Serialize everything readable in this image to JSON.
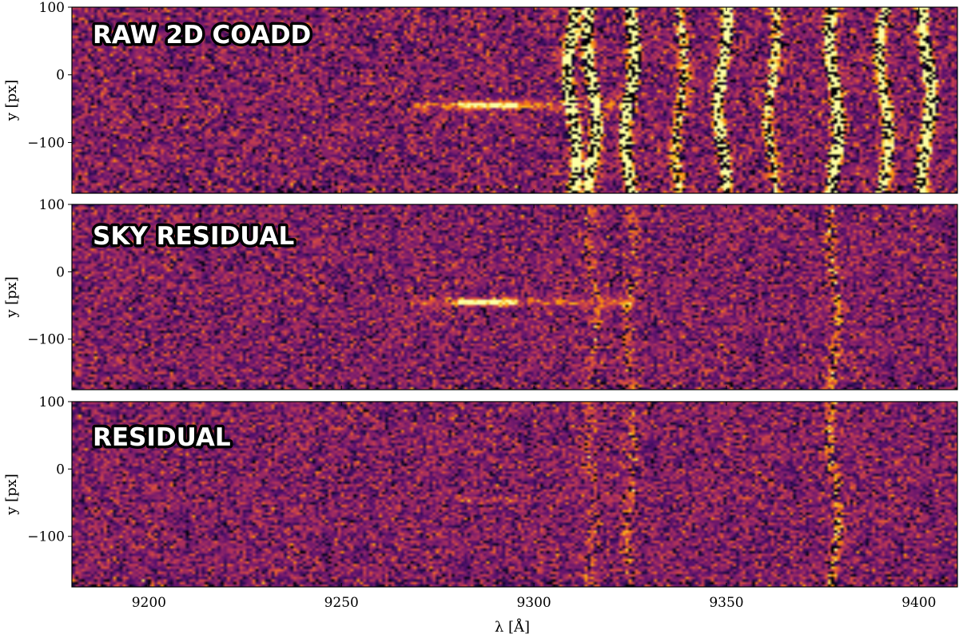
{
  "chart_data": {
    "type": "heatmap",
    "colormap": "inferno",
    "xlabel": "λ [Å]",
    "ylabel": "y [px]",
    "xlim": [
      9180,
      9410
    ],
    "ylim": [
      -175,
      100
    ],
    "xticks": [
      9200,
      9250,
      9300,
      9350,
      9400
    ],
    "yticks": [
      100,
      0,
      -100
    ],
    "xtick_labels": [
      "9200",
      "9250",
      "9300",
      "9350",
      "9400"
    ],
    "ytick_labels": [
      "100",
      "0",
      "−100"
    ],
    "panels": [
      {
        "title": "RAW 2D COADD",
        "noise_level": 0.3,
        "source_emission": {
          "x_range": [
            9280,
            9296
          ],
          "y": -45,
          "strength": 0.85
        },
        "sky_lines": [
          {
            "x": 9310,
            "strength": 1.0
          },
          {
            "x": 9315,
            "strength": 1.0
          },
          {
            "x": 9325,
            "strength": 1.0
          },
          {
            "x": 9338,
            "strength": 0.6
          },
          {
            "x": 9349,
            "strength": 0.9
          },
          {
            "x": 9362,
            "strength": 0.6
          },
          {
            "x": 9378,
            "strength": 1.0
          },
          {
            "x": 9391,
            "strength": 0.8
          },
          {
            "x": 9402,
            "strength": 1.0
          }
        ]
      },
      {
        "title": "SKY RESIDUAL",
        "noise_level": 0.28,
        "source_emission": {
          "x_range": [
            9280,
            9296
          ],
          "y": -45,
          "strength": 0.8
        },
        "sky_lines": [
          {
            "x": 9315,
            "strength": 0.25
          },
          {
            "x": 9325,
            "strength": 0.25
          },
          {
            "x": 9378,
            "strength": 0.35
          }
        ]
      },
      {
        "title": "RESIDUAL",
        "noise_level": 0.28,
        "source_emission": {
          "x_range": [
            9280,
            9296
          ],
          "y": -45,
          "strength": 0.15
        },
        "sky_lines": [
          {
            "x": 9315,
            "strength": 0.25
          },
          {
            "x": 9325,
            "strength": 0.25
          },
          {
            "x": 9378,
            "strength": 0.35
          }
        ]
      }
    ]
  }
}
